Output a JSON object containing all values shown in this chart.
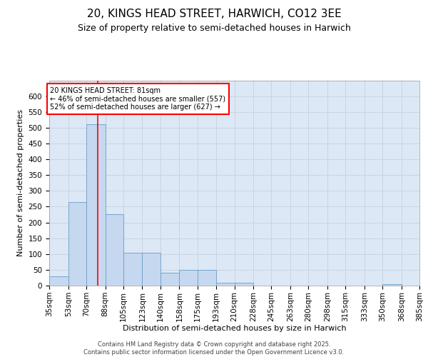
{
  "title_line1": "20, KINGS HEAD STREET, HARWICH, CO12 3EE",
  "title_line2": "Size of property relative to semi-detached houses in Harwich",
  "xlabel": "Distribution of semi-detached houses by size in Harwich",
  "ylabel": "Number of semi-detached properties",
  "bins": [
    "35sqm",
    "53sqm",
    "70sqm",
    "88sqm",
    "105sqm",
    "123sqm",
    "140sqm",
    "158sqm",
    "175sqm",
    "193sqm",
    "210sqm",
    "228sqm",
    "245sqm",
    "263sqm",
    "280sqm",
    "298sqm",
    "315sqm",
    "333sqm",
    "350sqm",
    "368sqm",
    "385sqm"
  ],
  "bin_edges": [
    35,
    53,
    70,
    88,
    105,
    123,
    140,
    158,
    175,
    193,
    210,
    228,
    245,
    263,
    280,
    298,
    315,
    333,
    350,
    368,
    385
  ],
  "bar_heights": [
    30,
    265,
    510,
    225,
    105,
    105,
    40,
    50,
    50,
    10,
    10,
    0,
    0,
    0,
    0,
    0,
    0,
    0,
    5,
    0,
    5
  ],
  "bar_color": "#c5d8f0",
  "bar_edge_color": "#6b9dc8",
  "property_line_x": 81,
  "property_line_color": "red",
  "annotation_text": "20 KINGS HEAD STREET: 81sqm\n← 46% of semi-detached houses are smaller (557)\n52% of semi-detached houses are larger (627) →",
  "annotation_box_color": "white",
  "annotation_box_edge_color": "red",
  "ylim": [
    0,
    650
  ],
  "yticks": [
    0,
    50,
    100,
    150,
    200,
    250,
    300,
    350,
    400,
    450,
    500,
    550,
    600
  ],
  "background_color": "#dce8f5",
  "grid_color": "#c8d4e0",
  "footer_text": "Contains HM Land Registry data © Crown copyright and database right 2025.\nContains public sector information licensed under the Open Government Licence v3.0.",
  "title_fontsize": 11,
  "subtitle_fontsize": 9,
  "axis_label_fontsize": 8,
  "tick_fontsize": 7.5,
  "footer_fontsize": 6
}
